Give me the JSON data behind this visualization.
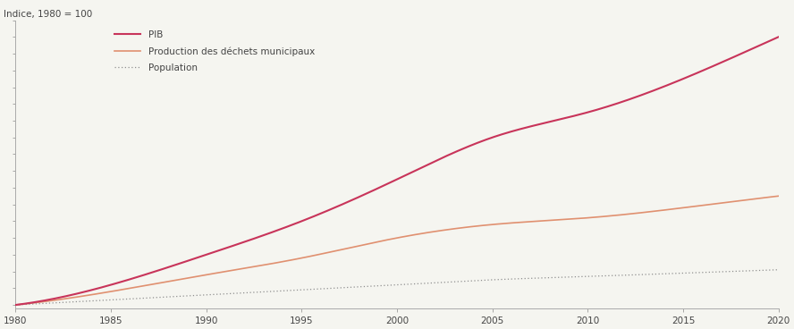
{
  "title_ylabel": "Indice, 1980 = 100",
  "xlim": [
    1980,
    2020
  ],
  "ylim": [
    98,
    270
  ],
  "xticks": [
    1980,
    1985,
    1990,
    1995,
    2000,
    2005,
    2010,
    2015,
    2020
  ],
  "years": [
    1980,
    1985,
    1990,
    1995,
    2000,
    2005,
    2010,
    2015,
    2020
  ],
  "pib": [
    100,
    112,
    130,
    150,
    175,
    200,
    215,
    235,
    260
  ],
  "dechets": [
    100,
    108,
    118,
    128,
    140,
    148,
    152,
    158,
    165
  ],
  "population": [
    100,
    103,
    106,
    109,
    112,
    115,
    117,
    119,
    121
  ],
  "pib_color": "#c8345a",
  "dechets_color": "#e09070",
  "population_color": "#909090",
  "legend_labels": [
    "PIB",
    "Production des déchets municipaux",
    "Population"
  ],
  "background_color": "#f5f5f0",
  "spine_color": "#aaaaaa",
  "tick_color": "#888888",
  "label_color": "#444444"
}
